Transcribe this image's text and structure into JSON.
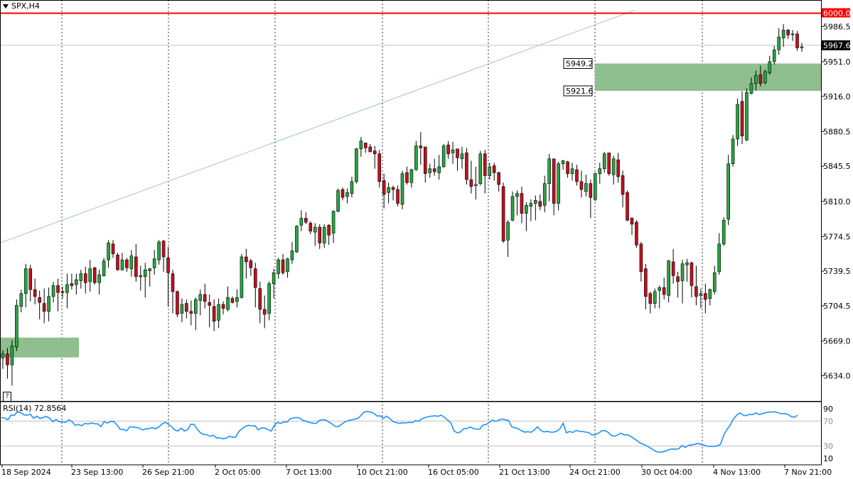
{
  "header": {
    "symbol": "SPX,H4"
  },
  "help_marker": "?",
  "indicator": {
    "label": "RSI(14) 72.8564"
  },
  "colors": {
    "up": "#26a641",
    "down": "#c0111f",
    "zone": "#8fbe8f",
    "level": "#ff0000",
    "rsi": "#1e90ff",
    "trend": "#9ccf9c"
  },
  "chart_data": {
    "type": "candlestick",
    "symbol": "SPX",
    "timeframe": "H4",
    "ylim": [
      5610,
      6009
    ],
    "price_ticks": [
      "5986.5",
      "5951.0",
      "5916.0",
      "5880.5",
      "5845.5",
      "5810.0",
      "5774.5",
      "5739.5",
      "5704.5",
      "5669.0",
      "5634.0"
    ],
    "date_labels": [
      "18 Sep 2024",
      "23 Sep 13:00",
      "26 Sep 21:00",
      "2 Oct 05:00",
      "7 Oct 13:00",
      "10 Oct 21:00",
      "16 Oct 05:00",
      "21 Oct 13:00",
      "24 Oct 21:00",
      "30 Oct 04:00",
      "4 Nov 13:00",
      "7 Nov 21:00"
    ],
    "current_price": "5967.6",
    "resistance_level": {
      "value": 6000.0,
      "label": "6000.0"
    },
    "zones": [
      {
        "name": "upper",
        "top": 5949.2,
        "bottom": 5921.6,
        "top_label": "5949.2",
        "bottom_label": "5921.6"
      },
      {
        "name": "lower",
        "top": 5672.5,
        "bottom": 5652.5
      }
    ],
    "trendline": {
      "start": 5768,
      "end": 6003
    },
    "rsi": {
      "period": 14,
      "value": 72.8564,
      "levels": [
        70,
        30
      ],
      "scale_labels": [
        "90",
        "70",
        "30",
        "10"
      ]
    },
    "candles": [
      [
        5652,
        5656,
        5641,
        5660
      ],
      [
        5656,
        5645,
        5631,
        5662
      ],
      [
        5645,
        5664,
        5624,
        5670
      ],
      [
        5663,
        5705,
        5659,
        5711
      ],
      [
        5704,
        5717,
        5698,
        5721
      ],
      [
        5717,
        5742,
        5703,
        5747
      ],
      [
        5742,
        5721,
        5709,
        5746
      ],
      [
        5721,
        5714,
        5706,
        5732
      ],
      [
        5713,
        5708,
        5691,
        5720
      ],
      [
        5707,
        5699,
        5687,
        5722
      ],
      [
        5699,
        5714,
        5689,
        5723
      ],
      [
        5714,
        5725,
        5708,
        5729
      ],
      [
        5725,
        5718,
        5699,
        5732
      ],
      [
        5719,
        5718,
        5712,
        5724
      ],
      [
        5718,
        5726,
        5702,
        5737
      ],
      [
        5727,
        5725,
        5721,
        5737
      ],
      [
        5726,
        5731,
        5716,
        5737
      ],
      [
        5730,
        5737,
        5722,
        5741
      ],
      [
        5737,
        5728,
        5717,
        5744
      ],
      [
        5729,
        5742,
        5719,
        5751
      ],
      [
        5743,
        5728,
        5726,
        5744
      ],
      [
        5728,
        5736,
        5716,
        5741
      ],
      [
        5735,
        5750,
        5734,
        5753
      ],
      [
        5751,
        5768,
        5743,
        5771
      ],
      [
        5767,
        5757,
        5753,
        5771
      ],
      [
        5756,
        5741,
        5740,
        5758
      ],
      [
        5741,
        5751,
        5740,
        5758
      ],
      [
        5751,
        5743,
        5739,
        5753
      ],
      [
        5742,
        5755,
        5734,
        5761
      ],
      [
        5754,
        5734,
        5729,
        5767
      ],
      [
        5735,
        5734,
        5720,
        5745
      ],
      [
        5734,
        5741,
        5713,
        5748
      ],
      [
        5740,
        5742,
        5724,
        5743
      ],
      [
        5743,
        5752,
        5736,
        5761
      ],
      [
        5751,
        5769,
        5746,
        5771
      ],
      [
        5770,
        5754,
        5739,
        5771
      ],
      [
        5753,
        5738,
        5704,
        5764
      ],
      [
        5737,
        5719,
        5697,
        5741
      ],
      [
        5719,
        5696,
        5693,
        5720
      ],
      [
        5697,
        5706,
        5688,
        5712
      ],
      [
        5707,
        5699,
        5692,
        5711
      ],
      [
        5699,
        5697,
        5685,
        5710
      ],
      [
        5697,
        5711,
        5680,
        5713
      ],
      [
        5710,
        5716,
        5695,
        5721
      ],
      [
        5716,
        5709,
        5702,
        5727
      ],
      [
        5708,
        5705,
        5683,
        5716
      ],
      [
        5704,
        5689,
        5679,
        5711
      ],
      [
        5690,
        5706,
        5682,
        5712
      ],
      [
        5706,
        5702,
        5696,
        5709
      ],
      [
        5701,
        5713,
        5699,
        5724
      ],
      [
        5712,
        5708,
        5707,
        5714
      ],
      [
        5709,
        5713,
        5703,
        5721
      ],
      [
        5713,
        5754,
        5712,
        5757
      ],
      [
        5754,
        5749,
        5732,
        5762
      ],
      [
        5750,
        5743,
        5735,
        5752
      ],
      [
        5742,
        5723,
        5703,
        5748
      ],
      [
        5722,
        5701,
        5687,
        5729
      ],
      [
        5701,
        5696,
        5682,
        5715
      ],
      [
        5697,
        5727,
        5690,
        5729
      ],
      [
        5727,
        5738,
        5712,
        5742
      ],
      [
        5737,
        5751,
        5732,
        5753
      ],
      [
        5751,
        5738,
        5736,
        5757
      ],
      [
        5739,
        5752,
        5733,
        5753
      ],
      [
        5751,
        5760,
        5747,
        5769
      ],
      [
        5759,
        5785,
        5758,
        5786
      ],
      [
        5786,
        5793,
        5780,
        5801
      ],
      [
        5793,
        5789,
        5787,
        5799
      ],
      [
        5788,
        5780,
        5777,
        5790
      ],
      [
        5779,
        5784,
        5765,
        5788
      ],
      [
        5784,
        5768,
        5762,
        5787
      ],
      [
        5768,
        5784,
        5763,
        5787
      ],
      [
        5786,
        5776,
        5766,
        5787
      ],
      [
        5778,
        5800,
        5768,
        5801
      ],
      [
        5800,
        5821,
        5799,
        5823
      ],
      [
        5822,
        5814,
        5811,
        5824
      ],
      [
        5815,
        5819,
        5808,
        5823
      ],
      [
        5818,
        5830,
        5814,
        5835
      ],
      [
        5830,
        5863,
        5828,
        5864
      ],
      [
        5863,
        5871,
        5855,
        5875
      ],
      [
        5869,
        5864,
        5859,
        5868
      ],
      [
        5865,
        5860,
        5860,
        5868
      ],
      [
        5861,
        5858,
        5843,
        5866
      ],
      [
        5858,
        5830,
        5824,
        5862
      ],
      [
        5831,
        5817,
        5803,
        5838
      ],
      [
        5819,
        5824,
        5808,
        5829
      ],
      [
        5824,
        5822,
        5811,
        5826
      ],
      [
        5822,
        5808,
        5805,
        5826
      ],
      [
        5807,
        5838,
        5802,
        5841
      ],
      [
        5839,
        5829,
        5827,
        5845
      ],
      [
        5829,
        5842,
        5824,
        5843
      ],
      [
        5842,
        5866,
        5841,
        5871
      ],
      [
        5866,
        5864,
        5847,
        5880
      ],
      [
        5865,
        5838,
        5829,
        5864
      ],
      [
        5839,
        5843,
        5834,
        5848
      ],
      [
        5843,
        5840,
        5836,
        5853
      ],
      [
        5839,
        5845,
        5832,
        5857
      ],
      [
        5845,
        5866,
        5844,
        5868
      ],
      [
        5867,
        5858,
        5853,
        5871
      ],
      [
        5859,
        5862,
        5848,
        5870
      ],
      [
        5863,
        5854,
        5841,
        5863
      ],
      [
        5853,
        5858,
        5843,
        5865
      ],
      [
        5859,
        5832,
        5827,
        5864
      ],
      [
        5832,
        5825,
        5818,
        5851
      ],
      [
        5826,
        5827,
        5812,
        5845
      ],
      [
        5828,
        5858,
        5826,
        5861
      ],
      [
        5858,
        5836,
        5818,
        5862
      ],
      [
        5836,
        5845,
        5832,
        5849
      ],
      [
        5846,
        5839,
        5831,
        5849
      ],
      [
        5839,
        5827,
        5820,
        5840
      ],
      [
        5825,
        5770,
        5768,
        5829
      ],
      [
        5771,
        5789,
        5754,
        5791
      ],
      [
        5791,
        5815,
        5790,
        5820
      ],
      [
        5815,
        5818,
        5796,
        5821
      ],
      [
        5818,
        5798,
        5788,
        5825
      ],
      [
        5798,
        5806,
        5780,
        5809
      ],
      [
        5805,
        5808,
        5790,
        5812
      ],
      [
        5808,
        5811,
        5791,
        5816
      ],
      [
        5810,
        5805,
        5801,
        5817
      ],
      [
        5806,
        5828,
        5799,
        5836
      ],
      [
        5828,
        5853,
        5810,
        5858
      ],
      [
        5853,
        5808,
        5796,
        5853
      ],
      [
        5808,
        5848,
        5801,
        5850
      ],
      [
        5848,
        5851,
        5842,
        5852
      ],
      [
        5850,
        5838,
        5834,
        5851
      ],
      [
        5838,
        5843,
        5831,
        5849
      ],
      [
        5842,
        5830,
        5826,
        5847
      ],
      [
        5830,
        5822,
        5814,
        5841
      ],
      [
        5820,
        5828,
        5815,
        5837
      ],
      [
        5828,
        5814,
        5793,
        5832
      ],
      [
        5812,
        5838,
        5810,
        5839
      ],
      [
        5838,
        5843,
        5828,
        5849
      ],
      [
        5843,
        5858,
        5839,
        5860
      ],
      [
        5859,
        5838,
        5836,
        5858
      ],
      [
        5837,
        5853,
        5827,
        5856
      ],
      [
        5852,
        5835,
        5829,
        5859
      ],
      [
        5836,
        5817,
        5804,
        5841
      ],
      [
        5819,
        5791,
        5790,
        5821
      ],
      [
        5793,
        5787,
        5776,
        5794
      ],
      [
        5789,
        5766,
        5763,
        5791
      ],
      [
        5767,
        5739,
        5729,
        5769
      ],
      [
        5742,
        5714,
        5701,
        5747
      ],
      [
        5717,
        5707,
        5697,
        5719
      ],
      [
        5707,
        5719,
        5702,
        5722
      ],
      [
        5720,
        5723,
        5702,
        5725
      ],
      [
        5723,
        5716,
        5711,
        5733
      ],
      [
        5715,
        5750,
        5708,
        5751
      ],
      [
        5749,
        5735,
        5727,
        5762
      ],
      [
        5734,
        5729,
        5713,
        5739
      ],
      [
        5730,
        5747,
        5707,
        5751
      ],
      [
        5746,
        5748,
        5729,
        5752
      ],
      [
        5748,
        5725,
        5713,
        5749
      ],
      [
        5724,
        5714,
        5705,
        5745
      ],
      [
        5715,
        5717,
        5702,
        5722
      ],
      [
        5717,
        5711,
        5697,
        5727
      ],
      [
        5712,
        5721,
        5705,
        5722
      ],
      [
        5719,
        5738,
        5716,
        5745
      ],
      [
        5739,
        5767,
        5736,
        5778
      ],
      [
        5767,
        5791,
        5765,
        5794
      ],
      [
        5792,
        5848,
        5786,
        5857
      ],
      [
        5848,
        5873,
        5845,
        5877
      ],
      [
        5873,
        5908,
        5866,
        5914
      ],
      [
        5911,
        5876,
        5868,
        5921
      ],
      [
        5872,
        5920,
        5871,
        5924
      ],
      [
        5919,
        5929,
        5918,
        5935
      ],
      [
        5929,
        5937,
        5922,
        5942
      ],
      [
        5938,
        5929,
        5926,
        5947
      ],
      [
        5930,
        5941,
        5928,
        5943
      ],
      [
        5940,
        5951,
        5938,
        5957
      ],
      [
        5951,
        5963,
        5948,
        5967
      ],
      [
        5963,
        5976,
        5958,
        5985
      ],
      [
        5975,
        5983,
        5966,
        5989
      ],
      [
        5983,
        5978,
        5974,
        5984
      ],
      [
        5979,
        5979,
        5972,
        5983
      ],
      [
        5979,
        5965,
        5962,
        5982
      ],
      [
        5965,
        5966,
        5961,
        5970
      ]
    ],
    "rsi_values": [
      75.5,
      75.0,
      72.0,
      79.4,
      79.2,
      85.2,
      83.4,
      80.0,
      79.4,
      81.0,
      74.5,
      77.9,
      74.2,
      75.8,
      77.4,
      74.7,
      68.9,
      72.6,
      69.0,
      68.7,
      68.0,
      72.2,
      69.1,
      63.1,
      64.7,
      62.5,
      66.4,
      65.3,
      67.2,
      65.7,
      65.6,
      61.1,
      69.1,
      66.7,
      69.2,
      69.5,
      63.6,
      56.8,
      56.6,
      54.5,
      60.9,
      60.5,
      59.9,
      58.7,
      55.7,
      57.6,
      58.0,
      59.5,
      57.7,
      60.6,
      65.0,
      68.2,
      65.0,
      61.0,
      55.8,
      54.0,
      58.7,
      54.1,
      56.3,
      65.0,
      64.5,
      57.0,
      51.1,
      48.6,
      48.2,
      45.6,
      47.4,
      42.9,
      43.3,
      41.6,
      42.5,
      45.8,
      44.0,
      44.6,
      53.6,
      57.9,
      61.6,
      63.3,
      62.5,
      62.4,
      56.0,
      59.3,
      58.8,
      56.7,
      53.9,
      62.9,
      68.0,
      66.1,
      68.8,
      68.4,
      73.9,
      75.1,
      75.7,
      74.9,
      70.8,
      69.7,
      67.8,
      66.7,
      66.2,
      71.0,
      72.2,
      71.8,
      68.5,
      65.3,
      61.4,
      61.1,
      65.0,
      68.7,
      70.7,
      71.9,
      72.8,
      74.2,
      79.1,
      84.6,
      85.3,
      84.4,
      82.5,
      78.2,
      78.4,
      74.8,
      77.8,
      74.0,
      69.1,
      67.6,
      66.3,
      67.4,
      67.0,
      67.9,
      67.6,
      70.8,
      69.8,
      73.8,
      75.7,
      77.2,
      78.0,
      78.5,
      77.6,
      79.6,
      76.0,
      71.8,
      67.0,
      54.2,
      51.2,
      52.6,
      57.8,
      58.0,
      60.6,
      58.0,
      57.2,
      57.3,
      63.6,
      64.4,
      68.4,
      71.7,
      69.6,
      71.8,
      73.3,
      71.9,
      71.0,
      60.7,
      59.3,
      57.7,
      54.7,
      52.3,
      53.1,
      52.1,
      56.0,
      60.9,
      55.1,
      52.6,
      53.6,
      52.4,
      52.3,
      53.9,
      57.8,
      66.7,
      51.4,
      53.3,
      51.8,
      55.1,
      53.4,
      53.4,
      52.4,
      51.5,
      47.6,
      48.2,
      50.6,
      54.7,
      54.8,
      52.0,
      46.9,
      45.8,
      47.9,
      50.7,
      47.6,
      48.2,
      45.6,
      42.2,
      38.7,
      34.5,
      33.1,
      30.2,
      27.4,
      24.1,
      21.2,
      20.2,
      20.8,
      22.1,
      24.4,
      25.3,
      24.9,
      25.8,
      31.0,
      28.0,
      31.1,
      32.0,
      32.7,
      34.3,
      32.7,
      31.2,
      29.8,
      29.7,
      29.4,
      30.3,
      32.9,
      47.4,
      56.3,
      63.7,
      73.1,
      79.3,
      83.2,
      79.8,
      78.5,
      81.0,
      80.2,
      83.1,
      80.6,
      82.0,
      83.4,
      84.3,
      84.6,
      84.9,
      83.4,
      81.6,
      82.2,
      80.8,
      77.3,
      76.2,
      79.3
    ]
  }
}
